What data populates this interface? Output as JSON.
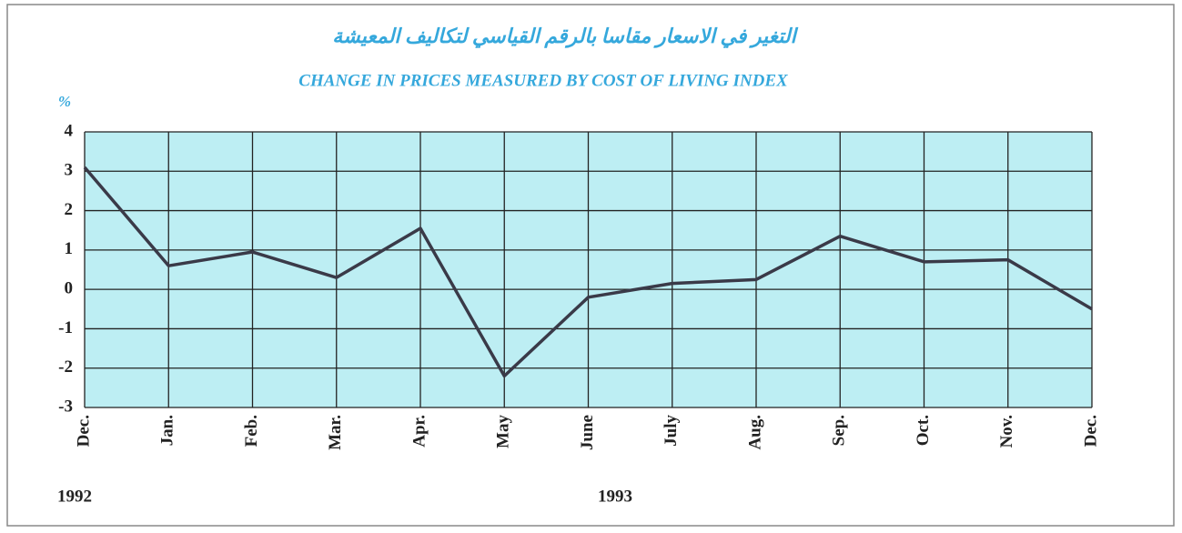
{
  "chart_data": {
    "type": "line",
    "title_arabic": "التغير في الاسعار مقاسا بالرقم القياسي لتكاليف المعيشة",
    "title": "CHANGE IN PRICES MEASURED BY COST OF LIVING INDEX",
    "y_label": "%",
    "categories": [
      "Dec.",
      "Jan.",
      "Feb.",
      "Mar.",
      "Apr.",
      "May",
      "June",
      "July",
      "Aug.",
      "Sep.",
      "Oct.",
      "Nov.",
      "Dec."
    ],
    "annotations": [
      "1992",
      "1993"
    ],
    "series": [
      {
        "color": "#3a3a48",
        "values": [
          3.1,
          0.6,
          0.95,
          0.3,
          1.55,
          -2.2,
          -0.2,
          0.15,
          0.25,
          1.35,
          0.7,
          0.75,
          -0.5
        ]
      }
    ],
    "ylim": [
      -3,
      4
    ],
    "yticks": [
      -3,
      -2,
      -1,
      0,
      1,
      2,
      3,
      4
    ],
    "grid": true,
    "plot_color": "#bdeef3"
  }
}
